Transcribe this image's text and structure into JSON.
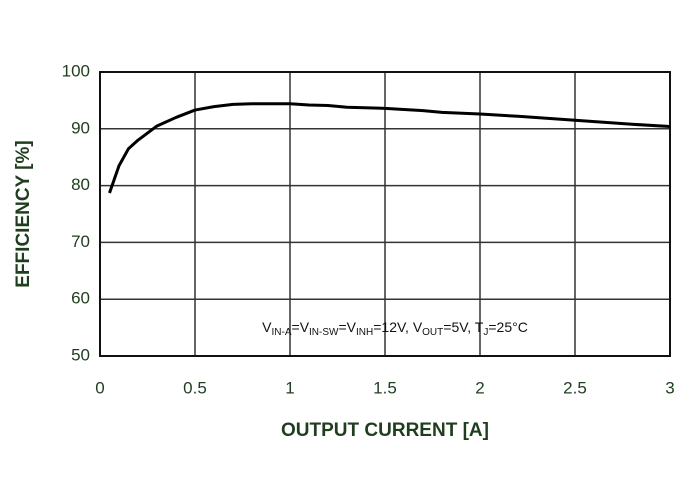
{
  "chart_data": {
    "type": "line",
    "x_label": "OUTPUT CURRENT [A]",
    "y_label": "EFFICIENCY [%]",
    "annotation": [
      {
        "text": "V"
      },
      {
        "text": "IN-A",
        "sub": true
      },
      {
        "text": "=V"
      },
      {
        "text": "IN-SW",
        "sub": true
      },
      {
        "text": "=V"
      },
      {
        "text": "INH",
        "sub": true
      },
      {
        "text": "=12V, V"
      },
      {
        "text": "OUT",
        "sub": true
      },
      {
        "text": "=5V, T"
      },
      {
        "text": "J",
        "sub": true
      },
      {
        "text": "=25°C"
      }
    ],
    "x": [
      0.05,
      0.1,
      0.15,
      0.2,
      0.3,
      0.4,
      0.5,
      0.6,
      0.7,
      0.8,
      1.0,
      1.1,
      1.2,
      1.3,
      1.5,
      1.7,
      1.8,
      2.0,
      2.2,
      2.5,
      2.8,
      3.0
    ],
    "series": [
      {
        "name": "Efficiency",
        "color": "#000000",
        "values": [
          78.7,
          83.5,
          86.5,
          88,
          90.5,
          92,
          93.3,
          93.9,
          94.3,
          94.4,
          94.4,
          94.2,
          94.1,
          93.8,
          93.6,
          93.2,
          92.9,
          92.6,
          92.2,
          91.5,
          90.8,
          90.4
        ]
      }
    ],
    "xlim": [
      0,
      3
    ],
    "xticks": [
      0,
      0.5,
      1,
      1.5,
      2,
      2.5,
      3
    ],
    "ylim": [
      50,
      100
    ],
    "yticks": [
      50,
      60,
      70,
      80,
      90,
      100
    ],
    "grid": true
  }
}
